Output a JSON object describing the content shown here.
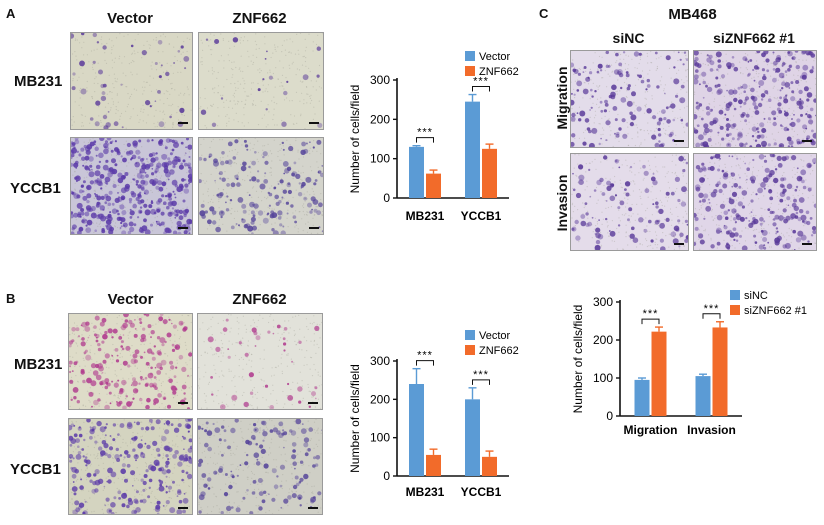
{
  "panels": {
    "A": {
      "letter": "A",
      "columns": [
        "Vector",
        "ZNF662"
      ],
      "rows": [
        "MB231",
        "YCCB1"
      ]
    },
    "B": {
      "letter": "B",
      "columns": [
        "Vector",
        "ZNF662"
      ],
      "rows": [
        "MB231",
        "YCCB1"
      ]
    },
    "C": {
      "letter": "C",
      "title": "MB468",
      "columns": [
        "siNC",
        "siZNF662 #1"
      ],
      "rows": [
        "Migration",
        "Invasion"
      ]
    }
  },
  "colors": {
    "blue": "#5b9bd5",
    "orange": "#f26b2a",
    "stain_purple": "#5a3a9a",
    "stain_magenta": "#b03a8e"
  },
  "chart_data": [
    {
      "panel": "A",
      "type": "bar",
      "categories": [
        "MB231",
        "YCCB1"
      ],
      "series": [
        {
          "name": "Vector",
          "values": [
            130,
            245
          ],
          "errors": [
            3,
            18
          ]
        },
        {
          "name": "ZNF662",
          "values": [
            62,
            125
          ],
          "errors": [
            9,
            12
          ]
        }
      ],
      "ylabel": "Number of cells/field",
      "ylim": [
        0,
        300
      ],
      "yticks": [
        "0",
        "100",
        "200",
        "300"
      ],
      "significance": [
        "***",
        "***"
      ],
      "legend_position": "top-right"
    },
    {
      "panel": "B",
      "type": "bar",
      "categories": [
        "MB231",
        "YCCB1"
      ],
      "series": [
        {
          "name": "Vector",
          "values": [
            240,
            200
          ],
          "errors": [
            40,
            30
          ]
        },
        {
          "name": "ZNF662",
          "values": [
            55,
            50
          ],
          "errors": [
            15,
            15
          ]
        }
      ],
      "ylabel": "Number of cells/field",
      "ylim": [
        0,
        300
      ],
      "yticks": [
        "0",
        "100",
        "200",
        "300"
      ],
      "significance": [
        "***",
        "***"
      ],
      "legend_position": "top-right"
    },
    {
      "panel": "C",
      "type": "bar",
      "categories": [
        "Migration",
        "Invasion"
      ],
      "series": [
        {
          "name": "siNC",
          "values": [
            95,
            105
          ],
          "errors": [
            5,
            5
          ]
        },
        {
          "name": "siZNF662 #1",
          "values": [
            222,
            233
          ],
          "errors": [
            12,
            15
          ]
        }
      ],
      "ylabel": "Number of cells/field",
      "ylim": [
        0,
        300
      ],
      "yticks": [
        "0",
        "100",
        "200",
        "300"
      ],
      "significance": [
        "***",
        "***"
      ],
      "legend_position": "top-right"
    }
  ]
}
